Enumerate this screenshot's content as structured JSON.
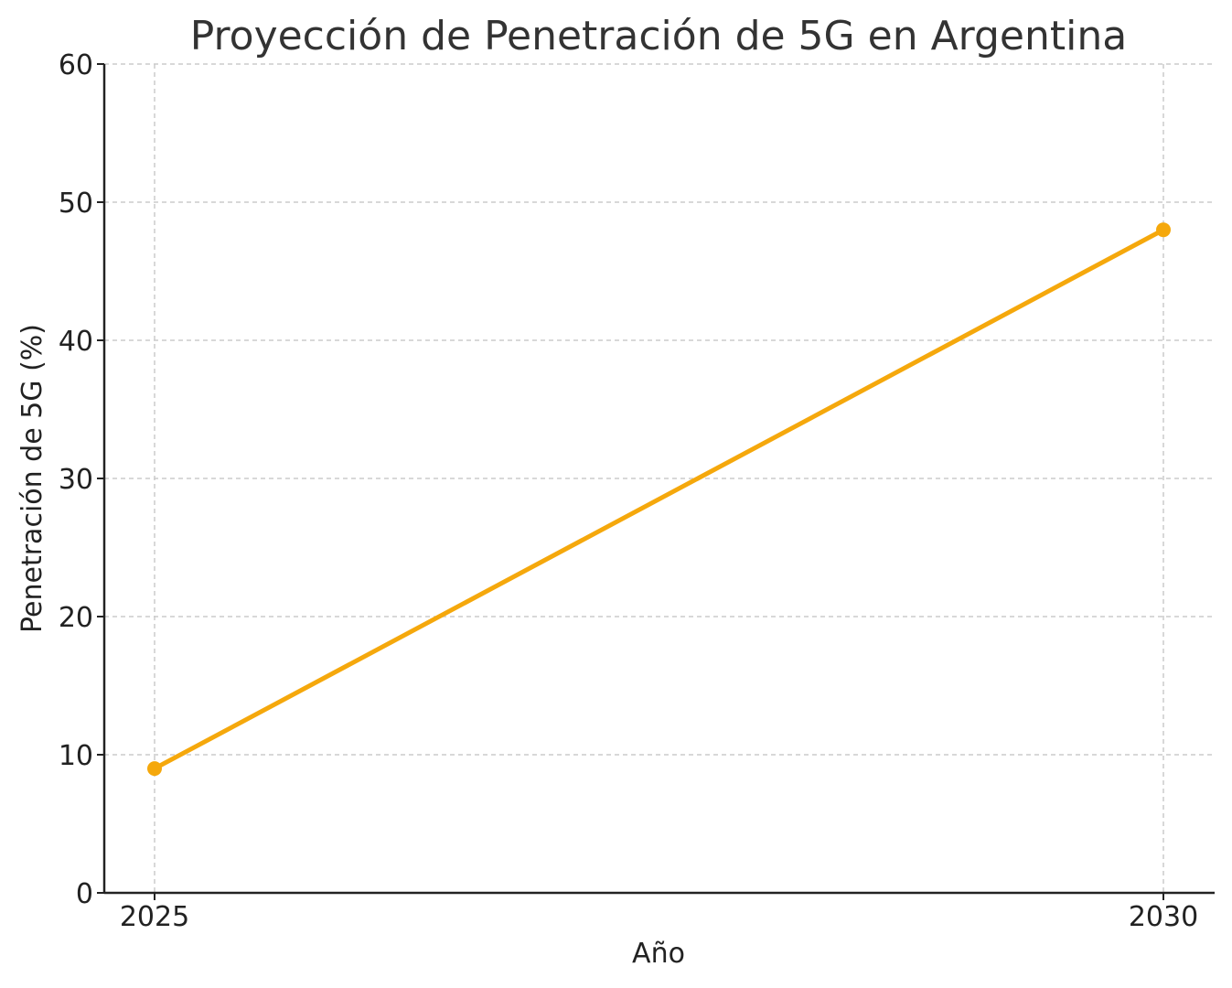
{
  "chart_data": {
    "type": "line",
    "title": "Proyección de Penetración de 5G en Argentina",
    "xlabel": "Año",
    "ylabel": "Penetración de 5G (%)",
    "x": [
      2025,
      2030
    ],
    "series": [
      {
        "values": [
          9,
          48
        ],
        "color": "#f5a80c"
      }
    ],
    "xticks": [
      "2025",
      "2030"
    ],
    "yticks": [
      0,
      10,
      20,
      30,
      40,
      50,
      60
    ],
    "ylim": [
      0,
      60
    ],
    "grid": true,
    "marker": "circle"
  }
}
